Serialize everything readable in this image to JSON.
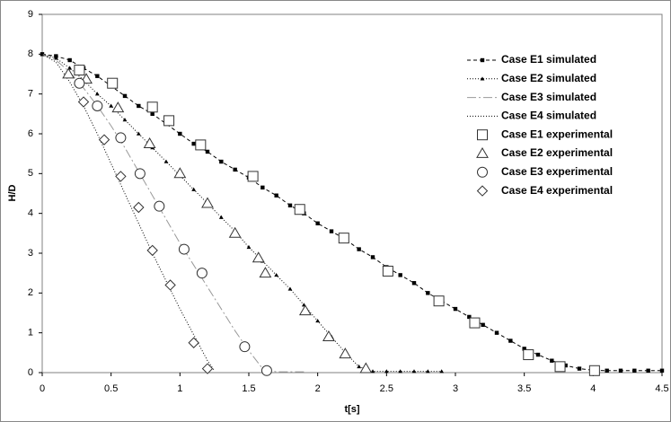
{
  "chart_data": {
    "type": "line",
    "xlabel": "t[s]",
    "ylabel": "H/D",
    "xlim": [
      0,
      4.5
    ],
    "ylim": [
      0,
      9
    ],
    "xticks": [
      0,
      0.5,
      1,
      1.5,
      2,
      2.5,
      3,
      3.5,
      4,
      4.5
    ],
    "yticks": [
      0,
      1,
      2,
      3,
      4,
      5,
      6,
      7,
      8,
      9
    ],
    "legend": "upper right",
    "series": [
      {
        "name": "Case E1 simulated",
        "color": "#000000",
        "dash": "4 3",
        "marker": "square",
        "line": true,
        "x": [
          0,
          0.1,
          0.2,
          0.3,
          0.4,
          0.5,
          0.6,
          0.7,
          0.8,
          0.9,
          1.0,
          1.1,
          1.2,
          1.3,
          1.4,
          1.5,
          1.6,
          1.7,
          1.8,
          1.9,
          2.0,
          2.1,
          2.2,
          2.3,
          2.4,
          2.5,
          2.6,
          2.7,
          2.8,
          2.9,
          3.0,
          3.1,
          3.2,
          3.3,
          3.4,
          3.5,
          3.6,
          3.7,
          3.8,
          3.9,
          4.0,
          4.1,
          4.2,
          4.3,
          4.4,
          4.5
        ],
        "values": [
          8,
          7.95,
          7.85,
          7.65,
          7.45,
          7.2,
          6.95,
          6.7,
          6.5,
          6.25,
          6.0,
          5.75,
          5.55,
          5.3,
          5.1,
          4.9,
          4.65,
          4.45,
          4.2,
          4.0,
          3.75,
          3.55,
          3.35,
          3.1,
          2.9,
          2.65,
          2.45,
          2.25,
          2.0,
          1.8,
          1.6,
          1.4,
          1.2,
          1.0,
          0.8,
          0.6,
          0.45,
          0.3,
          0.18,
          0.1,
          0.06,
          0.05,
          0.05,
          0.05,
          0.05,
          0.05
        ]
      },
      {
        "name": "Case E2 simulated",
        "color": "#000000",
        "dash": "1 2",
        "marker": "triangle",
        "line": true,
        "x": [
          0,
          0.1,
          0.2,
          0.3,
          0.4,
          0.5,
          0.6,
          0.7,
          0.8,
          0.9,
          1.0,
          1.1,
          1.2,
          1.3,
          1.4,
          1.5,
          1.6,
          1.7,
          1.8,
          1.9,
          2.0,
          2.1,
          2.2,
          2.3,
          2.4,
          2.5,
          2.6,
          2.7,
          2.8,
          2.9
        ],
        "values": [
          8,
          7.9,
          7.65,
          7.35,
          7.0,
          6.7,
          6.35,
          6.0,
          5.65,
          5.3,
          4.95,
          4.6,
          4.25,
          3.9,
          3.55,
          3.15,
          2.8,
          2.45,
          2.1,
          1.7,
          1.3,
          0.9,
          0.5,
          0.15,
          0.03,
          0.03,
          0.03,
          0.03,
          0.03,
          0.03
        ]
      },
      {
        "name": "Case E3 simulated",
        "color": "#999999",
        "dash": "10 3 2 3",
        "marker": "none",
        "line": true,
        "x": [
          0,
          0.1,
          0.2,
          0.3,
          0.4,
          0.5,
          0.6,
          0.7,
          0.8,
          0.9,
          1.0,
          1.1,
          1.2,
          1.3,
          1.4,
          1.5,
          1.6,
          1.7,
          1.8,
          1.9
        ],
        "values": [
          8,
          7.85,
          7.55,
          7.15,
          6.7,
          6.2,
          5.65,
          5.05,
          4.45,
          3.85,
          3.25,
          2.7,
          2.15,
          1.6,
          1.05,
          0.55,
          0.1,
          0.02,
          0.02,
          0.02
        ]
      },
      {
        "name": "Case E4 simulated",
        "color": "#000000",
        "dash": "1 2",
        "marker": "none",
        "line": true,
        "x": [
          0,
          0.1,
          0.2,
          0.3,
          0.4,
          0.5,
          0.6,
          0.7,
          0.8,
          0.9,
          1.0,
          1.1,
          1.2,
          1.25
        ],
        "values": [
          8,
          7.8,
          7.3,
          6.7,
          6.0,
          5.25,
          4.5,
          3.75,
          3.0,
          2.3,
          1.6,
          0.95,
          0.3,
          0.05
        ]
      },
      {
        "name": "Case E1 experimental",
        "color": "#333333",
        "marker": "open-square",
        "line": false,
        "x": [
          0.27,
          0.51,
          0.8,
          0.92,
          1.15,
          1.53,
          1.87,
          2.19,
          2.51,
          2.88,
          3.14,
          3.53,
          3.76,
          4.01
        ],
        "values": [
          7.6,
          7.27,
          6.67,
          6.33,
          5.72,
          4.93,
          4.1,
          3.38,
          2.55,
          1.8,
          1.25,
          0.45,
          0.15,
          0.05
        ]
      },
      {
        "name": "Case E2 experimental",
        "color": "#333333",
        "marker": "open-triangle",
        "line": false,
        "x": [
          0.19,
          0.32,
          0.55,
          0.78,
          1.0,
          1.2,
          1.4,
          1.57,
          1.62,
          1.91,
          2.08,
          2.2,
          2.35
        ],
        "values": [
          7.5,
          7.37,
          6.65,
          5.75,
          5.0,
          4.25,
          3.5,
          2.88,
          2.5,
          1.55,
          0.9,
          0.47,
          0.1
        ]
      },
      {
        "name": "Case E3 experimental",
        "color": "#333333",
        "marker": "open-circle",
        "line": false,
        "x": [
          0.27,
          0.4,
          0.57,
          0.71,
          0.85,
          1.03,
          1.16,
          1.47,
          1.63
        ],
        "values": [
          7.27,
          6.7,
          5.9,
          5.0,
          4.18,
          3.1,
          2.5,
          0.65,
          0.05
        ]
      },
      {
        "name": "Case E4 experimental",
        "color": "#333333",
        "marker": "open-diamond",
        "line": false,
        "x": [
          0.3,
          0.45,
          0.57,
          0.7,
          0.8,
          0.93,
          1.1,
          1.2
        ],
        "values": [
          6.8,
          5.85,
          4.93,
          4.15,
          3.07,
          2.2,
          0.75,
          0.1
        ]
      }
    ]
  }
}
